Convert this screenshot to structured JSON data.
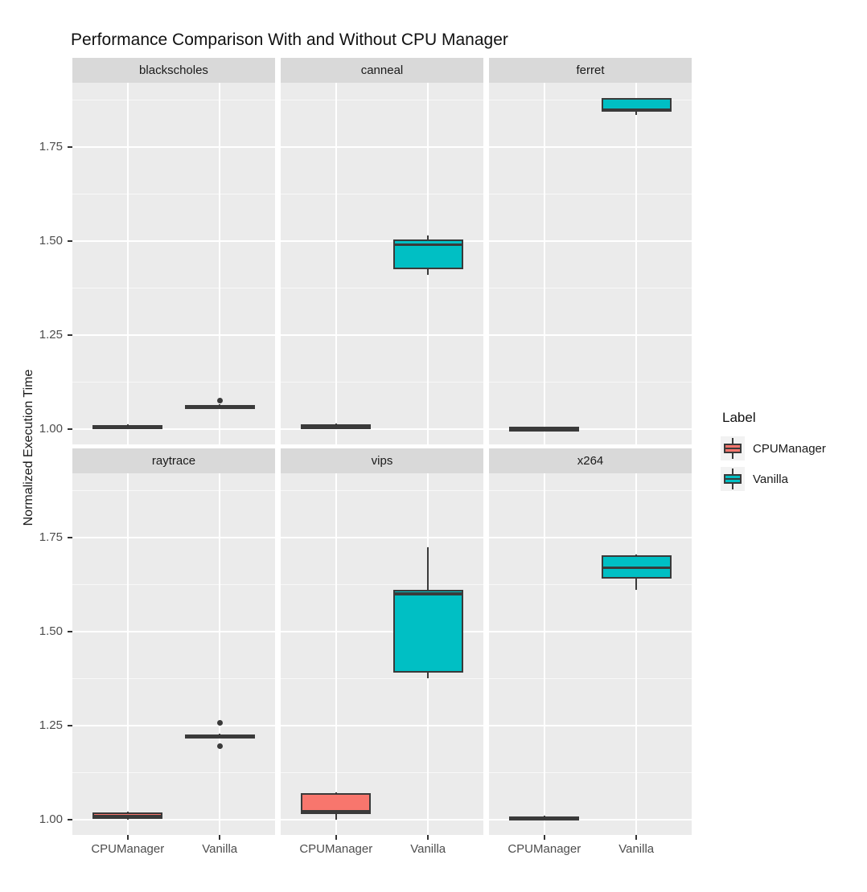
{
  "title": "Performance Comparison With and Without CPU Manager",
  "y_axis": {
    "label": "Normalized Execution Time",
    "tick_labels": [
      "1.75",
      "1.50",
      "1.25",
      "1.00"
    ],
    "tick_values": [
      1.75,
      1.5,
      1.25,
      1.0
    ],
    "minor_values": [
      1.875,
      1.625,
      1.375,
      1.125
    ],
    "domain": [
      0.959,
      1.921
    ]
  },
  "x_axis": {
    "categories": [
      "CPUManager",
      "Vanilla"
    ]
  },
  "legend": {
    "title": "Label",
    "items": [
      {
        "label": "CPUManager",
        "color": "#F8766D"
      },
      {
        "label": "Vanilla",
        "color": "#00BFC4"
      }
    ]
  },
  "colors": {
    "cpumanager_fill": "#F8766D",
    "vanilla_fill": "#00BFC4",
    "box_border": "#3A3A3A",
    "panel_bg": "#EBEBEB",
    "strip_bg": "#D9D9D9",
    "grid": "#FFFFFF",
    "axis_text": "#4D4D4D",
    "legend_key_bg": "#F2F2F2"
  },
  "chart_data": {
    "type": "boxplot",
    "facets_layout": "2 rows x 3 cols",
    "ylabel": "Normalized Execution Time",
    "xlabel": "",
    "categories": [
      "CPUManager",
      "Vanilla"
    ],
    "facets": [
      {
        "name": "blackscholes",
        "boxes": [
          {
            "group": "CPUManager",
            "min": 1.002,
            "q1": 1.004,
            "median": 1.007,
            "q3": 1.011,
            "max": 1.013,
            "outliers": []
          },
          {
            "group": "Vanilla",
            "min": 1.053,
            "q1": 1.056,
            "median": 1.06,
            "q3": 1.064,
            "max": 1.066,
            "outliers": [
              1.075
            ]
          }
        ]
      },
      {
        "name": "canneal",
        "boxes": [
          {
            "group": "CPUManager",
            "min": 0.999,
            "q1": 1.001,
            "median": 1.007,
            "q3": 1.013,
            "max": 1.015,
            "outliers": []
          },
          {
            "group": "Vanilla",
            "min": 1.41,
            "q1": 1.425,
            "median": 1.49,
            "q3": 1.505,
            "max": 1.515,
            "outliers": []
          }
        ]
      },
      {
        "name": "ferret",
        "boxes": [
          {
            "group": "CPUManager",
            "min": 0.998,
            "q1": 1.0,
            "median": 1.002,
            "q3": 1.004,
            "max": 1.005,
            "outliers": []
          },
          {
            "group": "Vanilla",
            "min": 1.835,
            "q1": 1.843,
            "median": 1.848,
            "q3": 1.88,
            "max": 1.88,
            "outliers": []
          }
        ]
      },
      {
        "name": "raytrace",
        "boxes": [
          {
            "group": "CPUManager",
            "min": 0.999,
            "q1": 1.002,
            "median": 1.01,
            "q3": 1.02,
            "max": 1.022,
            "outliers": []
          },
          {
            "group": "Vanilla",
            "min": 1.218,
            "q1": 1.22,
            "median": 1.222,
            "q3": 1.226,
            "max": 1.228,
            "outliers": [
              1.258,
              1.195
            ]
          }
        ]
      },
      {
        "name": "vips",
        "boxes": [
          {
            "group": "CPUManager",
            "min": 1.0,
            "q1": 1.015,
            "median": 1.022,
            "q3": 1.07,
            "max": 1.072,
            "outliers": []
          },
          {
            "group": "Vanilla",
            "min": 1.375,
            "q1": 1.39,
            "median": 1.6,
            "q3": 1.612,
            "max": 1.725,
            "outliers": []
          }
        ]
      },
      {
        "name": "x264",
        "boxes": [
          {
            "group": "CPUManager",
            "min": 0.999,
            "q1": 1.002,
            "median": 1.005,
            "q3": 1.009,
            "max": 1.011,
            "outliers": []
          },
          {
            "group": "Vanilla",
            "min": 1.612,
            "q1": 1.642,
            "median": 1.67,
            "q3": 1.703,
            "max": 1.706,
            "outliers": []
          }
        ]
      }
    ]
  }
}
